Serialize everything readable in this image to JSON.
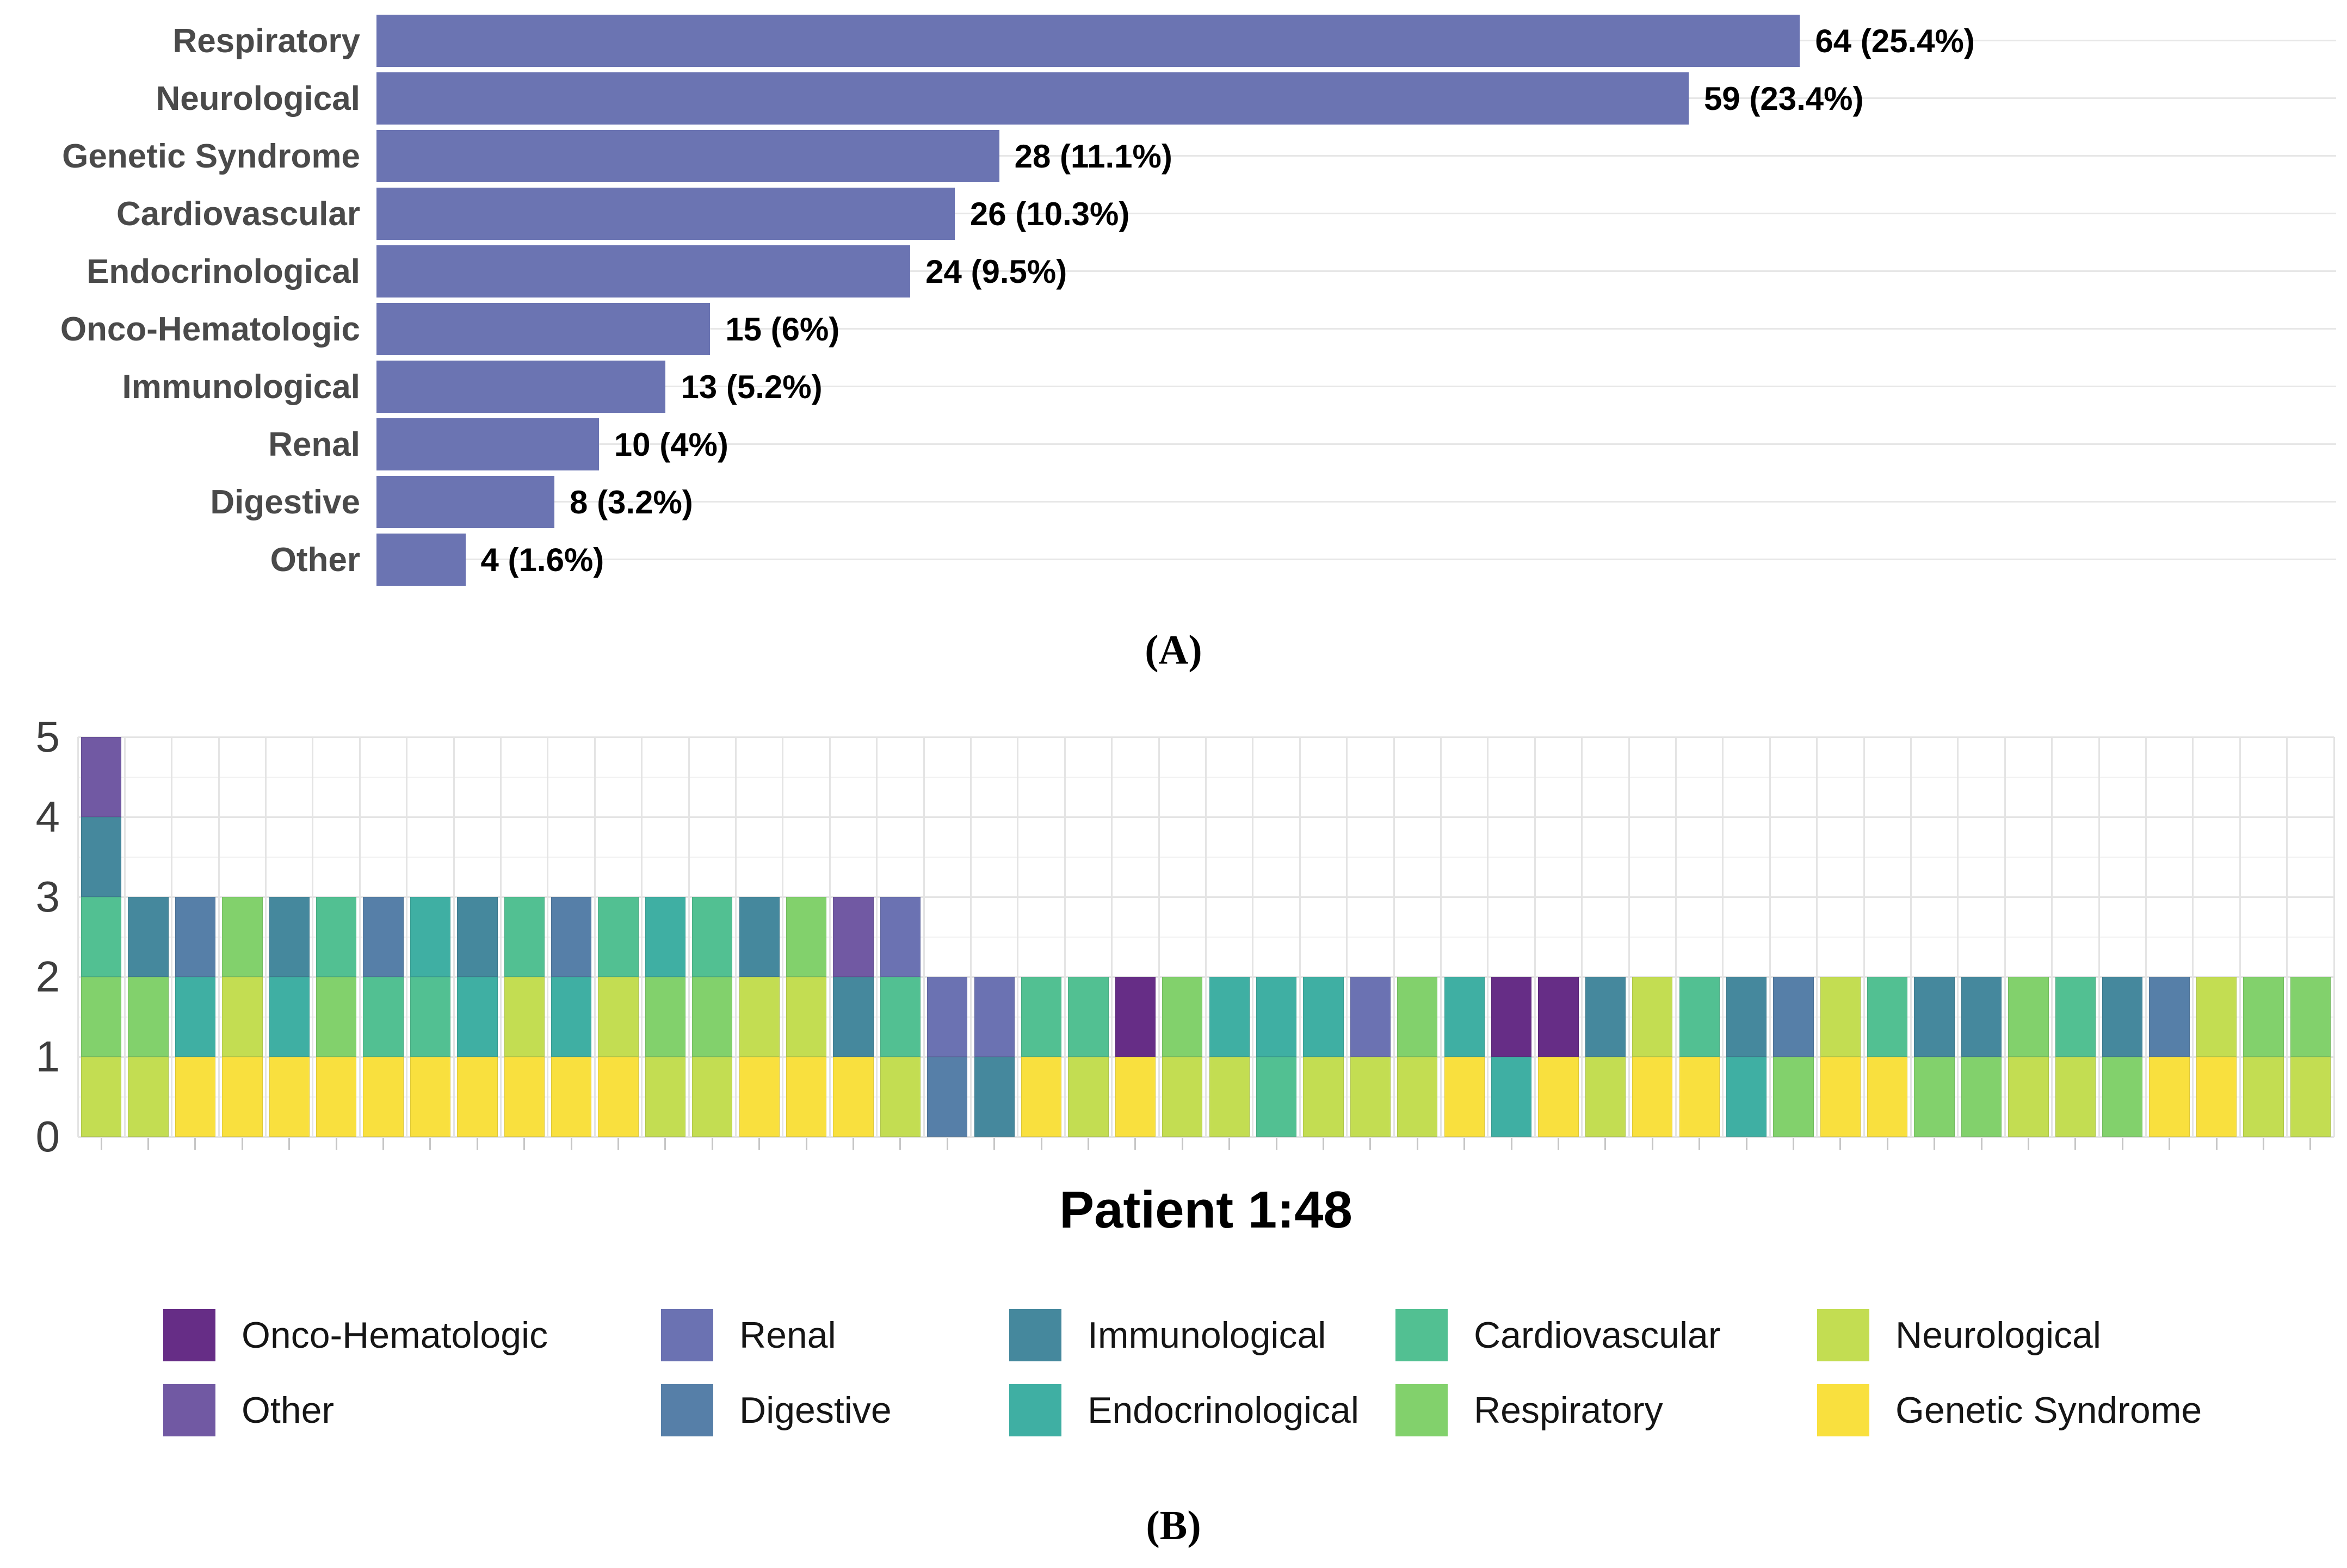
{
  "colors": {
    "Onco-Hematologic": "#662d86",
    "Other": "#7159a3",
    "Renal": "#6b72b2",
    "Digestive": "#567fa8",
    "Immunological": "#45889d",
    "Endocrinological": "#3fafa3",
    "Cardiovascular": "#52c092",
    "Respiratory": "#82d16c",
    "Neurological": "#c3dd52",
    "Genetic Syndrome": "#f9e03e",
    "panel_a_bar": "#6b74b2"
  },
  "captions": {
    "a": "(A)",
    "b": "(B)"
  },
  "chart_data": [
    {
      "type": "bar",
      "orientation": "horizontal",
      "title": "",
      "xlabel": "",
      "ylabel": "",
      "grid": "horizontal-row-lines",
      "implied_axis_max": 88.6,
      "categories": [
        "Respiratory",
        "Neurological",
        "Genetic Syndrome",
        "Cardiovascular",
        "Endocrinological",
        "Onco-Hematologic",
        "Immunological",
        "Renal",
        "Digestive",
        "Other"
      ],
      "values": [
        64,
        59,
        28,
        26,
        24,
        15,
        13,
        10,
        8,
        4
      ],
      "labels": [
        "64 (25.4%)",
        "59 (23.4%)",
        "28 (11.1%)",
        "26 (10.3%)",
        "24 (9.5%)",
        "15 (6%)",
        "13 (5.2%)",
        "10 (4%)",
        "8 (3.2%)",
        "4 (1.6%)"
      ]
    },
    {
      "type": "stacked-bar",
      "x_label": "Patient 1:48",
      "ylim": [
        0,
        5
      ],
      "y_ticks": [
        0,
        1,
        2,
        3,
        4,
        5
      ],
      "grid": "major+minor",
      "legend_position": "bottom",
      "patients": [
        {
          "id": 1,
          "stack": [
            "Neurological",
            "Respiratory",
            "Cardiovascular",
            "Immunological",
            "Other"
          ]
        },
        {
          "id": 2,
          "stack": [
            "Neurological",
            "Respiratory",
            "Immunological"
          ]
        },
        {
          "id": 3,
          "stack": [
            "Genetic Syndrome",
            "Endocrinological",
            "Digestive"
          ]
        },
        {
          "id": 4,
          "stack": [
            "Genetic Syndrome",
            "Neurological",
            "Respiratory"
          ]
        },
        {
          "id": 5,
          "stack": [
            "Genetic Syndrome",
            "Endocrinological",
            "Immunological"
          ]
        },
        {
          "id": 6,
          "stack": [
            "Genetic Syndrome",
            "Respiratory",
            "Cardiovascular"
          ]
        },
        {
          "id": 7,
          "stack": [
            "Genetic Syndrome",
            "Cardiovascular",
            "Digestive"
          ]
        },
        {
          "id": 8,
          "stack": [
            "Genetic Syndrome",
            "Cardiovascular",
            "Endocrinological"
          ]
        },
        {
          "id": 9,
          "stack": [
            "Genetic Syndrome",
            "Endocrinological",
            "Immunological"
          ]
        },
        {
          "id": 10,
          "stack": [
            "Genetic Syndrome",
            "Neurological",
            "Cardiovascular"
          ]
        },
        {
          "id": 11,
          "stack": [
            "Genetic Syndrome",
            "Endocrinological",
            "Digestive"
          ]
        },
        {
          "id": 12,
          "stack": [
            "Genetic Syndrome",
            "Neurological",
            "Cardiovascular"
          ]
        },
        {
          "id": 13,
          "stack": [
            "Neurological",
            "Respiratory",
            "Endocrinological"
          ]
        },
        {
          "id": 14,
          "stack": [
            "Neurological",
            "Respiratory",
            "Cardiovascular"
          ]
        },
        {
          "id": 15,
          "stack": [
            "Genetic Syndrome",
            "Neurological",
            "Immunological"
          ]
        },
        {
          "id": 16,
          "stack": [
            "Genetic Syndrome",
            "Neurological",
            "Respiratory"
          ]
        },
        {
          "id": 17,
          "stack": [
            "Genetic Syndrome",
            "Immunological",
            "Other"
          ]
        },
        {
          "id": 18,
          "stack": [
            "Neurological",
            "Cardiovascular",
            "Renal"
          ]
        },
        {
          "id": 19,
          "stack": [
            "Digestive",
            "Renal"
          ]
        },
        {
          "id": 20,
          "stack": [
            "Immunological",
            "Renal"
          ]
        },
        {
          "id": 21,
          "stack": [
            "Genetic Syndrome",
            "Cardiovascular"
          ]
        },
        {
          "id": 22,
          "stack": [
            "Neurological",
            "Cardiovascular"
          ]
        },
        {
          "id": 23,
          "stack": [
            "Genetic Syndrome",
            "Onco-Hematologic"
          ]
        },
        {
          "id": 24,
          "stack": [
            "Neurological",
            "Respiratory"
          ]
        },
        {
          "id": 25,
          "stack": [
            "Neurological",
            "Endocrinological"
          ]
        },
        {
          "id": 26,
          "stack": [
            "Cardiovascular",
            "Endocrinological"
          ]
        },
        {
          "id": 27,
          "stack": [
            "Neurological",
            "Endocrinological"
          ]
        },
        {
          "id": 28,
          "stack": [
            "Neurological",
            "Renal"
          ]
        },
        {
          "id": 29,
          "stack": [
            "Neurological",
            "Respiratory"
          ]
        },
        {
          "id": 30,
          "stack": [
            "Genetic Syndrome",
            "Endocrinological"
          ]
        },
        {
          "id": 31,
          "stack": [
            "Endocrinological",
            "Onco-Hematologic"
          ]
        },
        {
          "id": 32,
          "stack": [
            "Genetic Syndrome",
            "Onco-Hematologic"
          ]
        },
        {
          "id": 33,
          "stack": [
            "Neurological",
            "Immunological"
          ]
        },
        {
          "id": 34,
          "stack": [
            "Genetic Syndrome",
            "Neurological"
          ]
        },
        {
          "id": 35,
          "stack": [
            "Genetic Syndrome",
            "Cardiovascular"
          ]
        },
        {
          "id": 36,
          "stack": [
            "Endocrinological",
            "Immunological"
          ]
        },
        {
          "id": 37,
          "stack": [
            "Respiratory",
            "Digestive"
          ]
        },
        {
          "id": 38,
          "stack": [
            "Genetic Syndrome",
            "Neurological"
          ]
        },
        {
          "id": 39,
          "stack": [
            "Genetic Syndrome",
            "Cardiovascular"
          ]
        },
        {
          "id": 40,
          "stack": [
            "Respiratory",
            "Immunological"
          ]
        },
        {
          "id": 41,
          "stack": [
            "Respiratory",
            "Immunological"
          ]
        },
        {
          "id": 42,
          "stack": [
            "Neurological",
            "Respiratory"
          ]
        },
        {
          "id": 43,
          "stack": [
            "Neurological",
            "Cardiovascular"
          ]
        },
        {
          "id": 44,
          "stack": [
            "Respiratory",
            "Immunological"
          ]
        },
        {
          "id": 45,
          "stack": [
            "Genetic Syndrome",
            "Digestive"
          ]
        },
        {
          "id": 46,
          "stack": [
            "Genetic Syndrome",
            "Neurological"
          ]
        },
        {
          "id": 47,
          "stack": [
            "Neurological",
            "Respiratory"
          ]
        },
        {
          "id": 48,
          "stack": [
            "Neurological",
            "Respiratory"
          ]
        }
      ]
    }
  ],
  "legend": {
    "columns": [
      [
        "Onco-Hematologic",
        "Other"
      ],
      [
        "Renal",
        "Digestive"
      ],
      [
        "Immunological",
        "Endocrinological"
      ],
      [
        "Cardiovascular",
        "Respiratory"
      ],
      [
        "Neurological",
        "Genetic Syndrome"
      ]
    ]
  }
}
